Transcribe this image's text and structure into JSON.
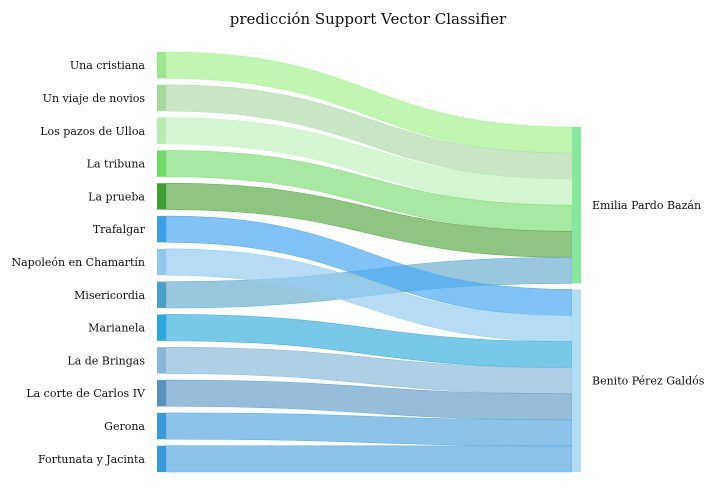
{
  "chart_data": {
    "type": "sankey",
    "title": "predicción Support Vector Classifier",
    "sources": [
      {
        "name": "Una cristiana",
        "color": "#9be88f"
      },
      {
        "name": "Un viaje de novios",
        "color": "#a6d99b"
      },
      {
        "name": "Los pazos de Ulloa",
        "color": "#b6edb0"
      },
      {
        "name": "La tribuna",
        "color": "#6fd968"
      },
      {
        "name": "La prueba",
        "color": "#3f9e32"
      },
      {
        "name": "Trafalgar",
        "color": "#3d9fea"
      },
      {
        "name": "Napoleón en Chamartín",
        "color": "#8ec8ee"
      },
      {
        "name": "Misericordia",
        "color": "#47a1c8"
      },
      {
        "name": "Marianela",
        "color": "#2ca9dc"
      },
      {
        "name": "La de Bringas",
        "color": "#86b6d8"
      },
      {
        "name": "La corte de Carlos IV",
        "color": "#5792bf"
      },
      {
        "name": "Gerona",
        "color": "#3a9ad9"
      },
      {
        "name": "Fortunata y Jacinta",
        "color": "#3a9ad9"
      }
    ],
    "targets": [
      {
        "name": "Emilia Pardo Bazán",
        "color": "#86e89c"
      },
      {
        "name": "Benito Pérez Galdós",
        "color": "#b0dcf4"
      }
    ],
    "links": [
      {
        "source": "Una cristiana",
        "target": "Emilia Pardo Bazán",
        "value": 1,
        "color": "#a6f28e"
      },
      {
        "source": "Un viaje de novios",
        "target": "Emilia Pardo Bazán",
        "value": 1,
        "color": "#b3dcae"
      },
      {
        "source": "Los pazos de Ulloa",
        "target": "Emilia Pardo Bazán",
        "value": 1,
        "color": "#c4f2c0"
      },
      {
        "source": "La tribuna",
        "target": "Emilia Pardo Bazán",
        "value": 1,
        "color": "#82e07a"
      },
      {
        "source": "La prueba",
        "target": "Emilia Pardo Bazán",
        "value": 1,
        "color": "#5eae4c"
      },
      {
        "source": "Misericordia",
        "target": "Emilia Pardo Bazán",
        "value": 1,
        "color": "#6cb1d3"
      },
      {
        "source": "Trafalgar",
        "target": "Benito Pérez Galdós",
        "value": 1,
        "color": "#4ba9f2"
      },
      {
        "source": "Napoleón en Chamartín",
        "target": "Benito Pérez Galdós",
        "value": 1,
        "color": "#96cdf0"
      },
      {
        "source": "Marianela",
        "target": "Benito Pérez Galdós",
        "value": 1,
        "color": "#3fb0e0"
      },
      {
        "source": "La de Bringas",
        "target": "Benito Pérez Galdós",
        "value": 1,
        "color": "#8dbad9"
      },
      {
        "source": "La corte de Carlos IV",
        "target": "Benito Pérez Galdós",
        "value": 1,
        "color": "#6aa3cb"
      },
      {
        "source": "Gerona",
        "target": "Benito Pérez Galdós",
        "value": 1,
        "color": "#5aaae2"
      },
      {
        "source": "Fortunata y Jacinta",
        "target": "Benito Pérez Galdós",
        "value": 1,
        "color": "#5aaae2"
      }
    ]
  }
}
